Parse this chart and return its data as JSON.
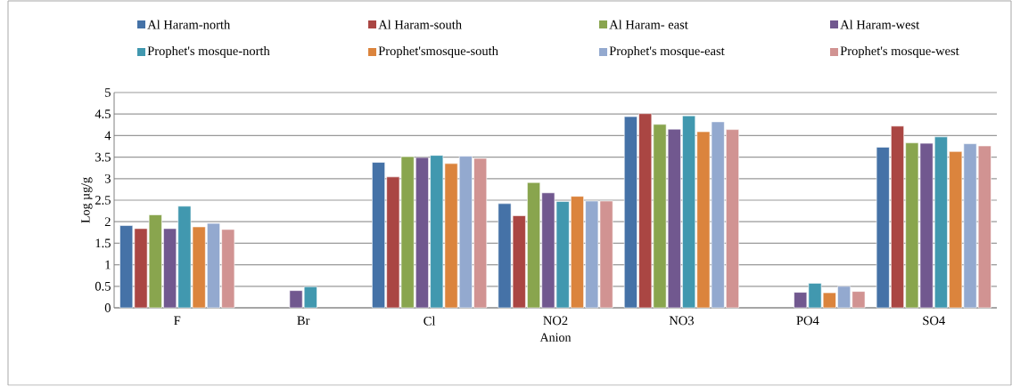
{
  "chart_data": {
    "type": "bar",
    "xlabel": "Anion",
    "ylabel": "Log µg/g",
    "categories": [
      "F",
      "Br",
      "Cl",
      "NO2",
      "NO3",
      "PO4",
      "SO4"
    ],
    "ylim": [
      0,
      5
    ],
    "yticks": [
      0,
      0.5,
      1,
      1.5,
      2,
      2.5,
      3,
      3.5,
      4,
      4.5,
      5
    ],
    "grid": "y",
    "legend": "top",
    "series": [
      {
        "name": "Al Haram-north",
        "color": "#4572a7",
        "values": [
          1.91,
          null,
          3.38,
          2.42,
          4.44,
          null,
          3.73
        ]
      },
      {
        "name": "Al Haram-south",
        "color": "#aa4643",
        "values": [
          1.84,
          null,
          3.04,
          2.14,
          4.51,
          null,
          4.22
        ]
      },
      {
        "name": "Al Haram- east",
        "color": "#89a54e",
        "values": [
          2.16,
          null,
          3.51,
          2.91,
          4.26,
          null,
          3.83
        ]
      },
      {
        "name": "Al Haram-west",
        "color": "#71588f",
        "values": [
          1.84,
          0.4,
          3.49,
          2.67,
          4.15,
          0.36,
          3.82
        ]
      },
      {
        "name": "Prophet's mosque-north",
        "color": "#4198af",
        "values": [
          2.36,
          0.49,
          3.54,
          2.47,
          4.46,
          0.57,
          3.97
        ]
      },
      {
        "name": "Prophet'smosque-south",
        "color": "#db843d",
        "values": [
          1.88,
          null,
          3.35,
          2.59,
          4.09,
          0.35,
          3.63
        ]
      },
      {
        "name": "Prophet's mosque-east",
        "color": "#93a9cf",
        "values": [
          1.96,
          null,
          3.52,
          2.48,
          4.32,
          0.5,
          3.81
        ]
      },
      {
        "name": "Prophet's mosque-west",
        "color": "#d19392",
        "values": [
          1.82,
          null,
          3.47,
          2.48,
          4.14,
          0.38,
          3.76
        ]
      }
    ]
  }
}
